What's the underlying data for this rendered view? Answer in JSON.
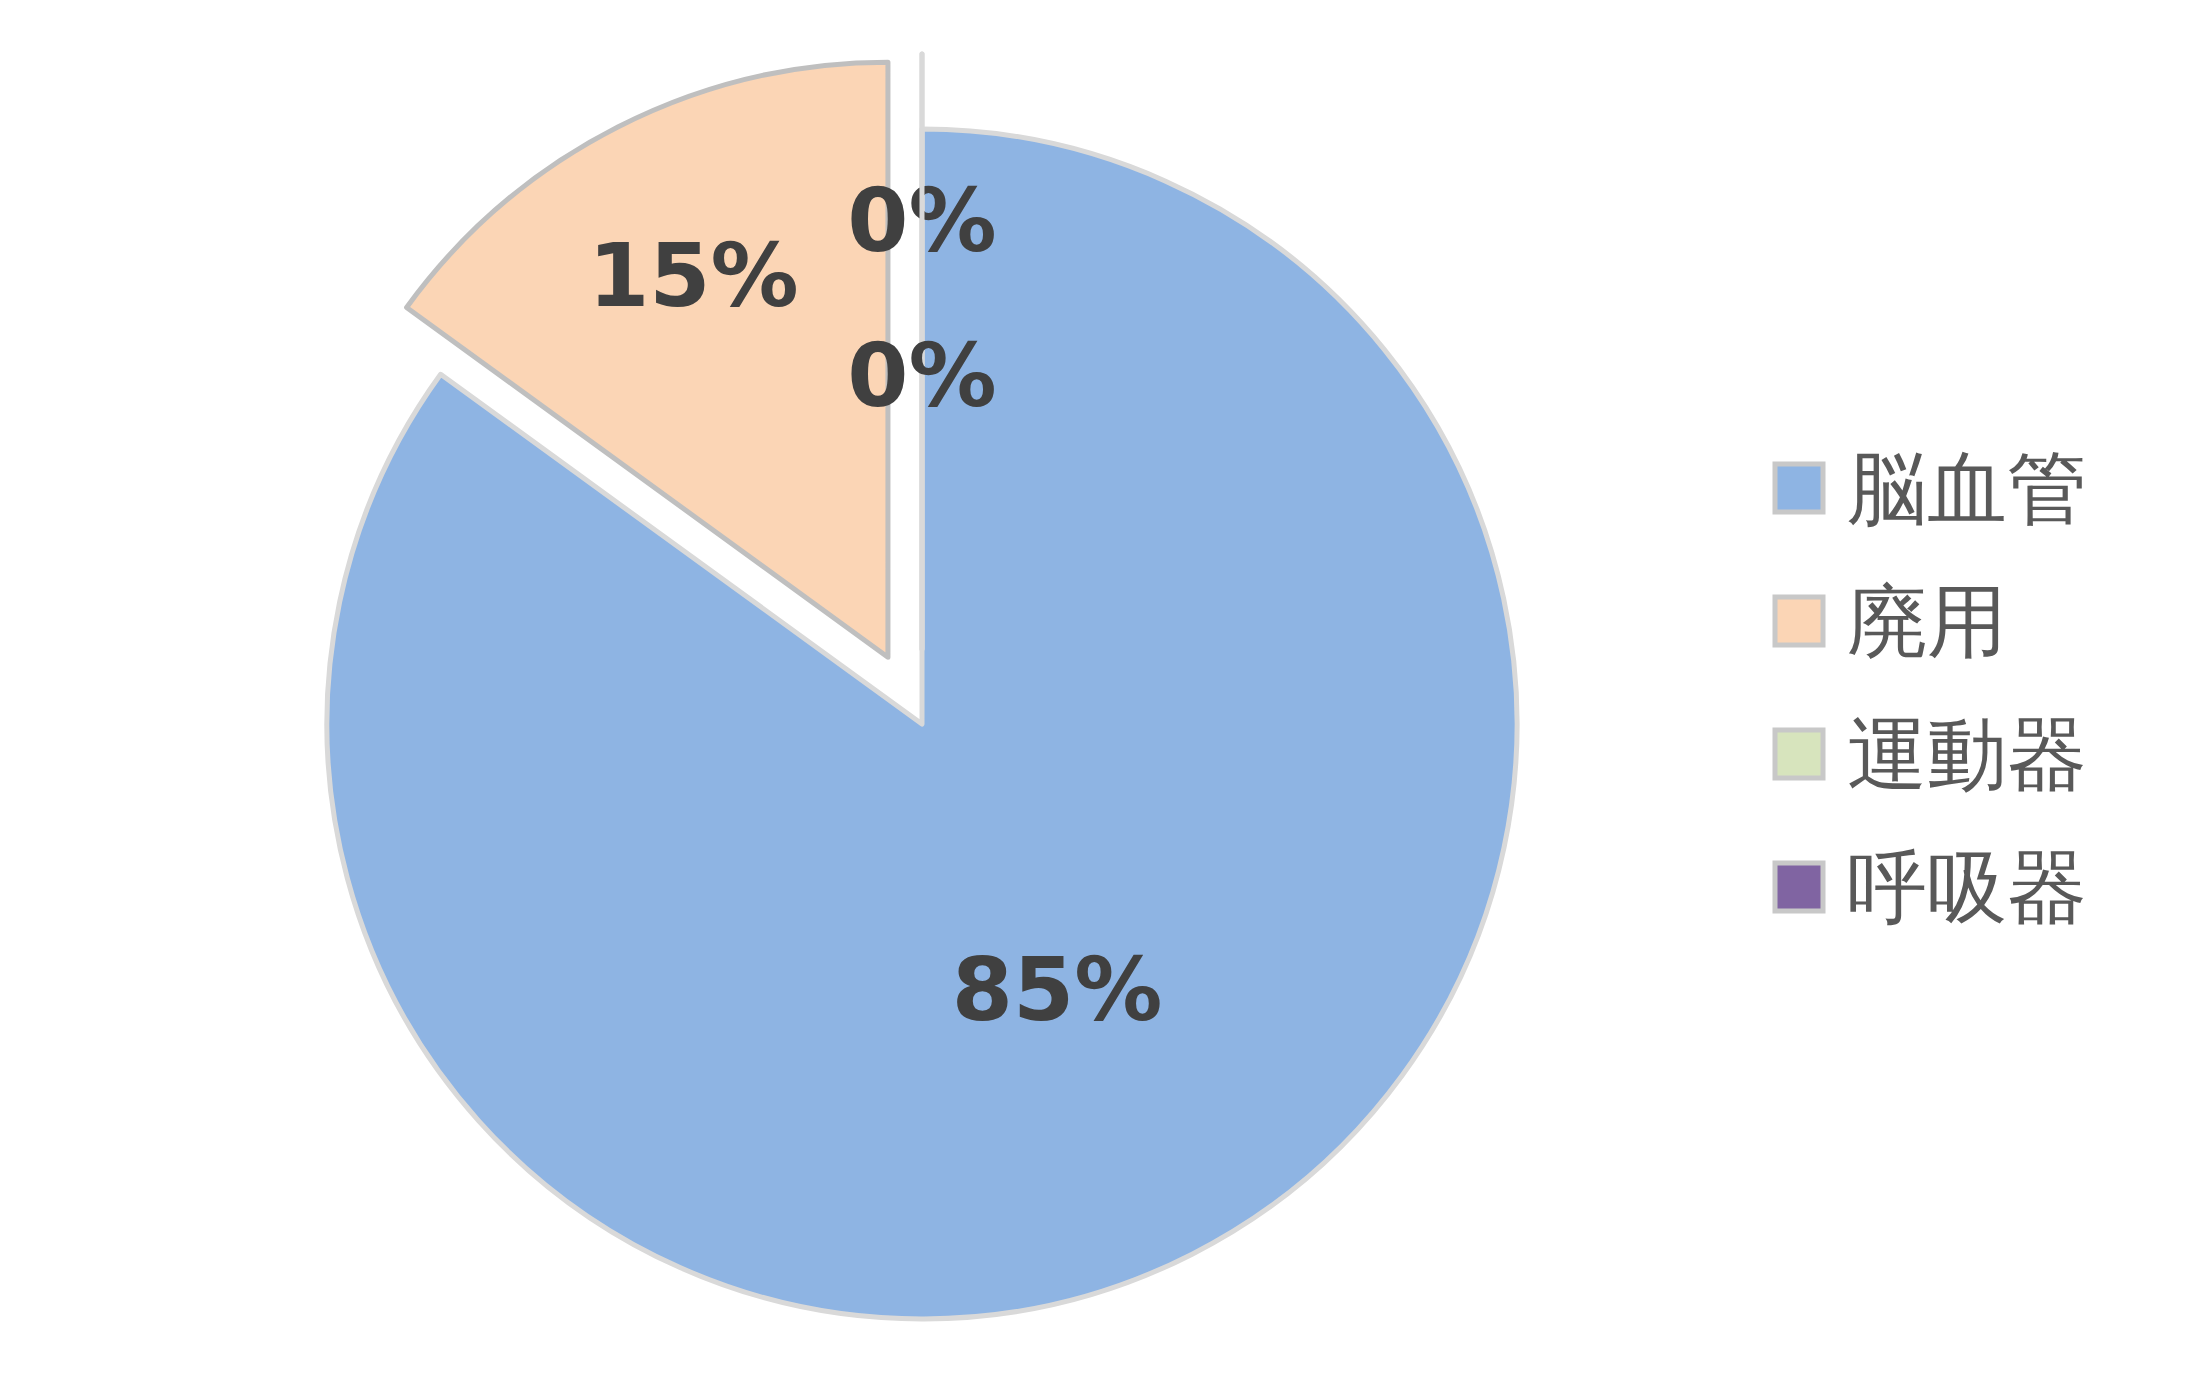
{
  "chart_data": {
    "type": "pie",
    "categories": [
      "脳血管",
      "廃用",
      "運動器",
      "呼吸器"
    ],
    "values": [
      85,
      15,
      0,
      0
    ],
    "colors": [
      "#8eb4e3",
      "#fbd5b5",
      "#d7e4bd",
      "#8064a2"
    ],
    "value_labels": [
      "85%",
      "15%",
      "0%",
      "0%"
    ],
    "legend": "right"
  }
}
